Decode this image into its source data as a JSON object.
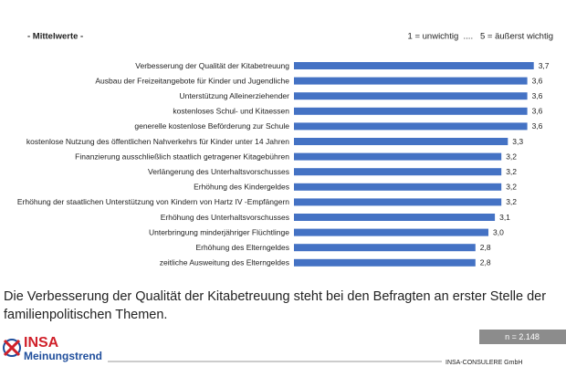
{
  "chart_data": {
    "type": "bar",
    "orientation": "horizontal",
    "title": "- Mittelwerte -",
    "scale_note": "1 = unwichtig  ....   5 = äußerst wichtig",
    "color": "#4472c4",
    "categories": [
      "Verbesserung der Qualität der Kitabetreuung",
      "Ausbau der Freizeitangebote für Kinder und Jugendliche",
      "Unterstützung Alleinerziehender",
      "kostenloses Schul- und Kitaessen",
      "generelle kostenlose Beförderung zur Schule",
      "kostenlose Nutzung des öffentlichen Nahverkehrs für Kinder unter 14 Jahren",
      "Finanzierung ausschließlich staatlich getragener Kitagebühren",
      "Verlängerung des Unterhaltsvorschusses",
      "Erhöhung des Kindergeldes",
      "Erhöhung der staatlichen Unterstützung von Kindern von Hartz IV -Empfängern",
      "Erhöhung des Unterhaltsvorschusses",
      "Unterbringung minderjähriger Flüchtlinge",
      "Erhöhung des Elterngeldes",
      "zeitliche Ausweitung des Elterngeldes"
    ],
    "values": [
      3.7,
      3.6,
      3.6,
      3.6,
      3.6,
      3.3,
      3.2,
      3.2,
      3.2,
      3.2,
      3.1,
      3.0,
      2.8,
      2.8
    ],
    "value_labels": [
      "3,7",
      "3,6",
      "3,6",
      "3,6",
      "3,6",
      "3,3",
      "3,2",
      "3,2",
      "3,2",
      "3,2",
      "3,1",
      "3,0",
      "2,8",
      "2,8"
    ]
  },
  "caption": [
    "Die Verbesserung der Qualität der Kitabetreuung steht bei den Befragten an erster Stelle der",
    "familienpolitischen Themen."
  ],
  "sample_size": "n = 2.148",
  "logo": {
    "name": "INSA",
    "tagline": "Meinungstrend"
  },
  "footer": "INSA-CONSULERE GmbH"
}
